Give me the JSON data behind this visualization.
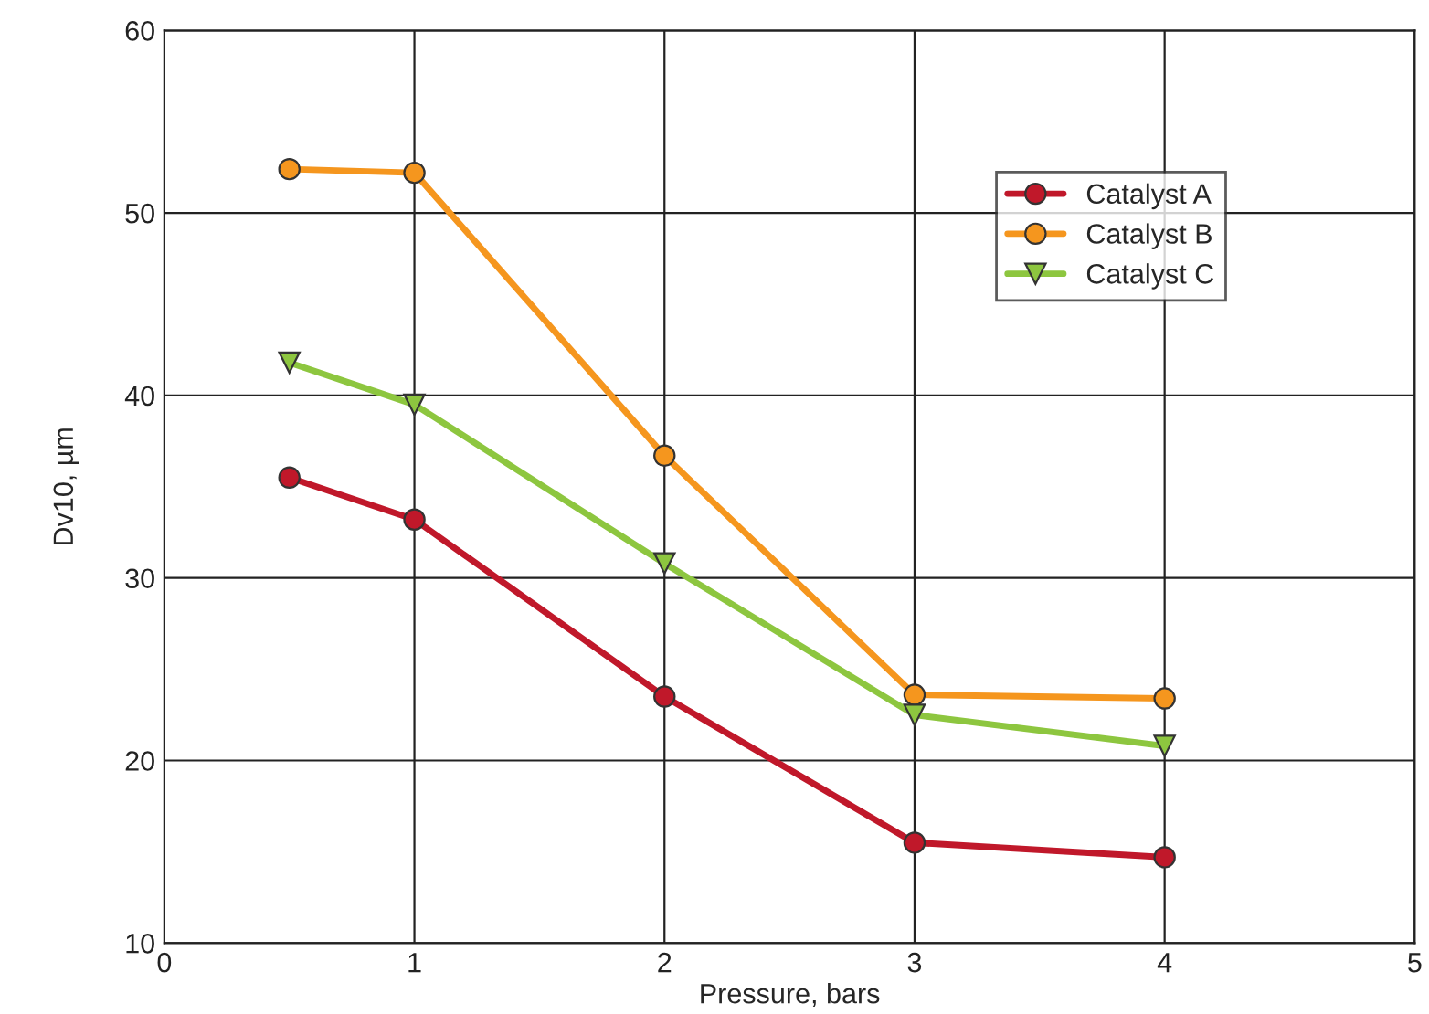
{
  "chart_data": {
    "type": "line",
    "xlabel": "Pressure, bars",
    "ylabel": "Dv10, µm",
    "xlim": [
      0,
      5
    ],
    "xticks": [
      0,
      1,
      2,
      3,
      4,
      5
    ],
    "ylim": [
      10,
      60
    ],
    "yticks": [
      10,
      20,
      30,
      40,
      50,
      60
    ],
    "grid": true,
    "legend": "top right",
    "line_style": "solid",
    "x": [
      0.5,
      1,
      2,
      3,
      4
    ],
    "series": [
      {
        "name": "Catalyst A",
        "color": "#c0182a",
        "marker": "circle",
        "values": [
          35.5,
          33.2,
          23.5,
          15.5,
          14.7
        ]
      },
      {
        "name": "Catalyst B",
        "color": "#f5961e",
        "marker": "circle",
        "values": [
          52.4,
          52.2,
          36.7,
          23.6,
          23.4
        ]
      },
      {
        "name": "Catalyst C",
        "color": "#8dc63f",
        "marker": "triangle",
        "values": [
          41.8,
          39.5,
          30.8,
          22.5,
          20.8
        ]
      }
    ]
  }
}
